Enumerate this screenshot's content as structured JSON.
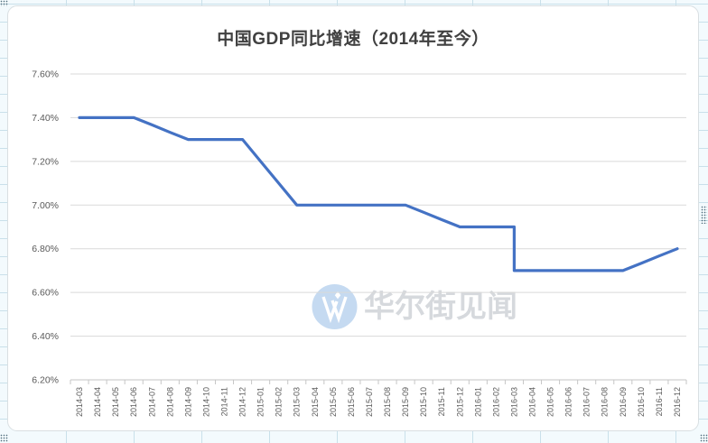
{
  "chart": {
    "title": "中国GDP同比增速（2014年至今）",
    "watermark": {
      "icon": "wallstreetcn-w-icon",
      "text": "华尔街见闻"
    }
  },
  "colors": {
    "line": "#4472C4",
    "gridline": "#D9D9D9",
    "axis_line": "#C6C6C6",
    "axis_label": "#595959",
    "title": "#404040",
    "watermark_circle": "#C5DAF1",
    "watermark_text": "#D6D9DD",
    "chart_border": "#D9DFE2"
  },
  "chart_data": {
    "type": "line",
    "title": "中国GDP同比增速（2014年至今）",
    "xlabel": "",
    "ylabel": "",
    "ylim": [
      6.2,
      7.6
    ],
    "y_ticks": [
      7.6,
      7.4,
      7.2,
      7.0,
      6.8,
      6.6,
      6.4,
      6.2
    ],
    "y_tick_labels": [
      "7.60%",
      "7.40%",
      "7.20%",
      "7.00%",
      "6.80%",
      "6.60%",
      "6.40%",
      "6.20%"
    ],
    "grid": true,
    "legend": "none",
    "categories": [
      "2014-03",
      "2014-04",
      "2014-05",
      "2014-06",
      "2014-07",
      "2014-08",
      "2014-09",
      "2014-10",
      "2014-11",
      "2014-12",
      "2015-01",
      "2015-02",
      "2015-03",
      "2015-04",
      "2015-05",
      "2015-06",
      "2015-07",
      "2015-08",
      "2015-09",
      "2015-10",
      "2015-11",
      "2015-12",
      "2016-01",
      "2016-02",
      "2016-03",
      "2016-04",
      "2016-05",
      "2016-06",
      "2016-07",
      "2016-08",
      "2016-09",
      "2016-10",
      "2016-11",
      "2016-12"
    ],
    "series": [
      {
        "name": "中国GDP同比增速",
        "color": "#4472C4",
        "points": [
          {
            "x": "2014-03",
            "y": 7.4
          },
          {
            "x": "2014-04",
            "y": 7.4
          },
          {
            "x": "2014-05",
            "y": 7.4
          },
          {
            "x": "2014-06",
            "y": 7.4
          },
          {
            "x": "2014-07",
            "y": 7.367
          },
          {
            "x": "2014-08",
            "y": 7.333
          },
          {
            "x": "2014-09",
            "y": 7.3
          },
          {
            "x": "2014-10",
            "y": 7.3
          },
          {
            "x": "2014-11",
            "y": 7.3
          },
          {
            "x": "2014-12",
            "y": 7.3
          },
          {
            "x": "2015-01",
            "y": 7.2
          },
          {
            "x": "2015-02",
            "y": 7.1
          },
          {
            "x": "2015-03",
            "y": 7.0
          },
          {
            "x": "2015-04",
            "y": 7.0
          },
          {
            "x": "2015-05",
            "y": 7.0
          },
          {
            "x": "2015-06",
            "y": 7.0
          },
          {
            "x": "2015-07",
            "y": 7.0
          },
          {
            "x": "2015-08",
            "y": 7.0
          },
          {
            "x": "2015-09",
            "y": 7.0
          },
          {
            "x": "2015-10",
            "y": 6.967
          },
          {
            "x": "2015-11",
            "y": 6.933
          },
          {
            "x": "2015-12",
            "y": 6.9
          },
          {
            "x": "2016-01",
            "y": 6.9
          },
          {
            "x": "2016-02",
            "y": 6.9
          },
          {
            "x": "2016-03",
            "y": 6.9
          },
          {
            "x": "2016-03",
            "y": 6.7
          },
          {
            "x": "2016-04",
            "y": 6.7
          },
          {
            "x": "2016-05",
            "y": 6.7
          },
          {
            "x": "2016-06",
            "y": 6.7
          },
          {
            "x": "2016-07",
            "y": 6.7
          },
          {
            "x": "2016-08",
            "y": 6.7
          },
          {
            "x": "2016-09",
            "y": 6.7
          },
          {
            "x": "2016-10",
            "y": 6.733
          },
          {
            "x": "2016-11",
            "y": 6.767
          },
          {
            "x": "2016-12",
            "y": 6.8
          }
        ]
      }
    ]
  }
}
